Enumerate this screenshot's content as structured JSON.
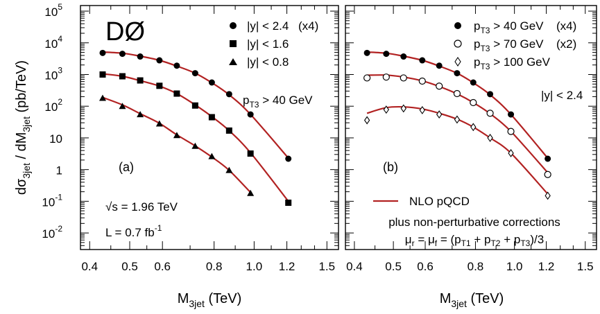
{
  "colors": {
    "fit_line": "#b22222",
    "marker": "#000000"
  },
  "axes": {
    "ylabel_parts": {
      "d": "dσ",
      "sub1": "3jet",
      "mid": " / dM",
      "sub2": "3jet",
      "unit": "  (pb/TeV)"
    },
    "xlabel_parts": {
      "main": "M",
      "sub": "3jet",
      "unit": "  (TeV)"
    },
    "x_ticks": [
      "0.4",
      "0.5",
      "0.6",
      "0.8",
      "1.0",
      "1.2",
      "1.5"
    ],
    "y_ticks": [
      {
        "base": "10",
        "exp": "5"
      },
      {
        "base": "10",
        "exp": "4"
      },
      {
        "base": "10",
        "exp": "3"
      },
      {
        "base": "10",
        "exp": "2"
      },
      {
        "base": "10",
        "exp": ""
      },
      {
        "base": "1",
        "exp": ""
      },
      {
        "base": "10",
        "exp": "-1"
      },
      {
        "base": "10",
        "exp": "-2"
      }
    ]
  },
  "panel_a": {
    "logo": "DØ",
    "label": "(a)",
    "cut": {
      "p": "p",
      "sub": "T3",
      "rest": " > 40 GeV"
    },
    "sqrt_s": {
      "root": "√s",
      "rest": " = 1.96 TeV"
    },
    "lumi": {
      "main": "L = 0.7 fb",
      "exp": "-1"
    },
    "legend": [
      {
        "marker": "circle",
        "text": "|y| < 2.4",
        "scale": "(x4)"
      },
      {
        "marker": "square",
        "text": "|y| < 1.6",
        "scale": ""
      },
      {
        "marker": "triangle",
        "text": "|y| < 0.8",
        "scale": ""
      }
    ]
  },
  "panel_b": {
    "label": "(b)",
    "cut": "|y| < 2.4",
    "legend": [
      {
        "marker": "circle",
        "p": "p",
        "sub": "T3",
        "rest": " > 40 GeV",
        "scale": "(x4)"
      },
      {
        "marker": "open-circle",
        "p": "p",
        "sub": "T3",
        "rest": " > 70 GeV",
        "scale": "(x2)"
      },
      {
        "marker": "open-diamond",
        "p": "p",
        "sub": "T3",
        "rest": " > 100 GeV",
        "scale": ""
      }
    ],
    "nlo_label": "NLO pQCD",
    "nlo_note": "plus non-perturbative corrections",
    "scale_eq": {
      "mu_r": "μ",
      "r": "r",
      "eq1": " = μ",
      "f": "f",
      "eq2": " = (p",
      "t1": "T1",
      "plus1": " + p",
      "t2": "T2",
      "plus2": " + p",
      "t3": "T3",
      "end": ")/3"
    }
  },
  "chart_data": [
    {
      "type": "scatter",
      "panel": "a",
      "xlabel": "M3jet (TeV)",
      "ylabel": "dσ3jet / dM3jet (pb/TeV)",
      "x_scale": "log",
      "y_scale": "log",
      "xlim": [
        0.38,
        1.6
      ],
      "ylim": [
        0.003,
        150000
      ],
      "x": [
        0.43,
        0.48,
        0.53,
        0.59,
        0.65,
        0.72,
        0.79,
        0.87,
        0.98,
        1.21
      ],
      "series": [
        {
          "name": "|y| < 2.4 (x4)",
          "marker": "circle",
          "values": [
            4800,
            4500,
            3700,
            2800,
            1900,
            1100,
            560,
            240,
            55,
            2.2
          ]
        },
        {
          "name": "|y| < 1.6",
          "marker": "square",
          "values": [
            1000,
            880,
            650,
            440,
            250,
            105,
            45,
            17,
            3.2,
            0.09
          ]
        },
        {
          "name": "|y| < 0.8",
          "marker": "triangle",
          "values": [
            180,
            100,
            55,
            28,
            12,
            5.5,
            2.6,
            0.95,
            0.18,
            null
          ]
        }
      ],
      "fit_curves": [
        {
          "x": [
            0.43,
            0.48,
            0.53,
            0.59,
            0.65,
            0.72,
            0.79,
            0.87,
            0.98,
            1.21
          ],
          "values": [
            5100,
            4700,
            3800,
            2800,
            1850,
            1100,
            550,
            230,
            55,
            2.3
          ]
        },
        {
          "x": [
            0.43,
            0.48,
            0.53,
            0.59,
            0.65,
            0.72,
            0.79,
            0.87,
            0.98,
            1.21
          ],
          "values": [
            1050,
            880,
            640,
            430,
            250,
            110,
            47,
            17,
            3.4,
            0.1
          ]
        },
        {
          "x": [
            0.43,
            0.48,
            0.53,
            0.59,
            0.65,
            0.72,
            0.79,
            0.87,
            0.98
          ],
          "values": [
            190,
            110,
            58,
            29,
            12.5,
            5.6,
            2.5,
            0.95,
            0.19
          ]
        }
      ]
    },
    {
      "type": "scatter",
      "panel": "b",
      "xlabel": "M3jet (TeV)",
      "x_scale": "log",
      "y_scale": "log",
      "xlim": [
        0.38,
        1.6
      ],
      "ylim": [
        0.003,
        150000
      ],
      "x": [
        0.43,
        0.48,
        0.53,
        0.59,
        0.65,
        0.72,
        0.79,
        0.87,
        0.98,
        1.21
      ],
      "series": [
        {
          "name": "pT3 > 40 GeV (x4)",
          "marker": "circle",
          "values": [
            4800,
            4500,
            3700,
            2800,
            1900,
            1100,
            560,
            240,
            55,
            2.2
          ]
        },
        {
          "name": "pT3 > 70 GeV (x2)",
          "marker": "open-circle",
          "values": [
            780,
            830,
            780,
            620,
            430,
            250,
            130,
            60,
            16,
            0.7
          ]
        },
        {
          "name": "pT3 > 100 GeV",
          "marker": "open-diamond",
          "values": [
            36,
            78,
            85,
            75,
            55,
            38,
            22,
            10,
            3.3,
            0.15
          ]
        }
      ],
      "fit_curves": [
        {
          "name": "NLO pQCD",
          "x": [
            0.43,
            0.48,
            0.53,
            0.59,
            0.65,
            0.72,
            0.79,
            0.87,
            0.98,
            1.21
          ],
          "values": [
            5100,
            4700,
            3800,
            2800,
            1850,
            1100,
            550,
            230,
            55,
            2.3
          ]
        },
        {
          "x": [
            0.43,
            0.48,
            0.53,
            0.59,
            0.65,
            0.72,
            0.79,
            0.87,
            0.98,
            1.21
          ],
          "values": [
            950,
            960,
            830,
            630,
            420,
            245,
            130,
            58,
            16,
            0.8
          ]
        },
        {
          "x": [
            0.43,
            0.48,
            0.53,
            0.59,
            0.65,
            0.72,
            0.79,
            0.87,
            0.98,
            1.21
          ],
          "values": [
            60,
            90,
            95,
            82,
            60,
            39,
            22,
            10,
            3.3,
            0.17
          ]
        }
      ]
    }
  ]
}
